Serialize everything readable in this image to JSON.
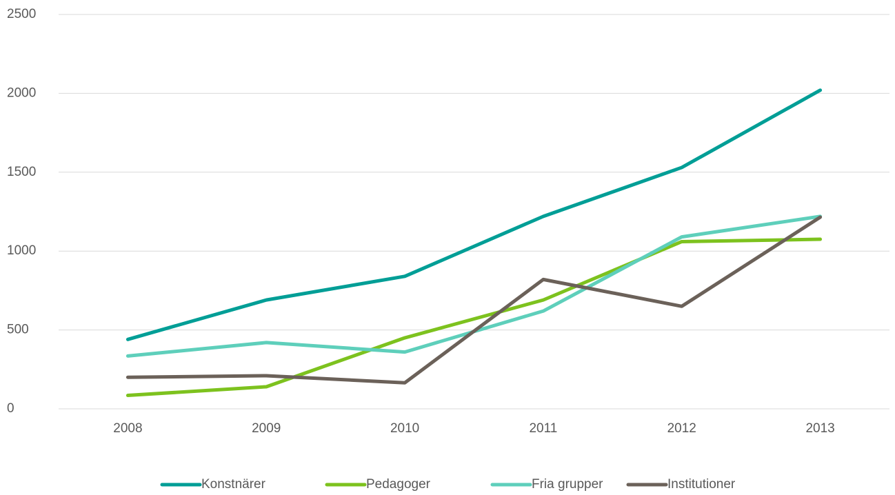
{
  "chart_data": {
    "type": "line",
    "categories": [
      "2008",
      "2009",
      "2010",
      "2011",
      "2012",
      "2013"
    ],
    "series": [
      {
        "name": "Konstnärer",
        "color": "#009e96",
        "values": [
          440,
          690,
          840,
          1220,
          1530,
          2020
        ]
      },
      {
        "name": "Pedagoger",
        "color": "#7dc21e",
        "values": [
          85,
          140,
          450,
          690,
          1060,
          1075
        ]
      },
      {
        "name": "Fria grupper",
        "color": "#5ecfbb",
        "values": [
          335,
          420,
          360,
          620,
          1090,
          1220
        ]
      },
      {
        "name": "Institutioner",
        "color": "#6b6159",
        "values": [
          200,
          210,
          165,
          820,
          650,
          1215
        ]
      }
    ],
    "ylim": [
      0,
      2500
    ],
    "yticks": [
      0,
      500,
      1000,
      1500,
      2000,
      2500
    ],
    "grid": true,
    "legend": "bottom"
  }
}
